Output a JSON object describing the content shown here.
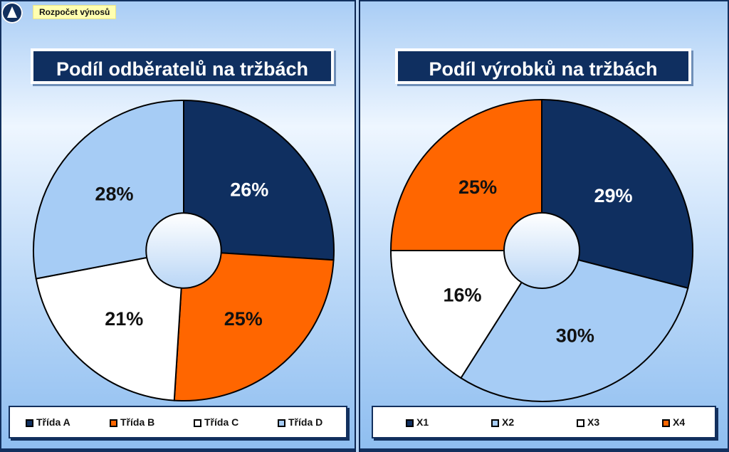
{
  "header": {
    "label": "Rozpočet výnosů"
  },
  "colors": {
    "navy": "#0f2f60",
    "orange": "#ff6600",
    "white": "#ffffff",
    "light_blue": "#a6ccf5"
  },
  "chart_data": [
    {
      "type": "pie",
      "title": "Podíl odběratelů na tržbách",
      "categories": [
        "Třída A",
        "Třída B",
        "Třída C",
        "Třída D"
      ],
      "values": [
        26,
        25,
        21,
        28
      ],
      "labels": [
        "26%",
        "25%",
        "21%",
        "28%"
      ],
      "colors": [
        "#0f2f60",
        "#ff6600",
        "#ffffff",
        "#a6ccf5"
      ],
      "label_colors": [
        "#ffffff",
        "#111111",
        "#111111",
        "#111111"
      ],
      "donut_hole": true,
      "legend_position": "bottom"
    },
    {
      "type": "pie",
      "title": "Podíl výrobků na tržbách",
      "categories": [
        "X1",
        "X2",
        "X3",
        "X4"
      ],
      "values": [
        29,
        30,
        16,
        25
      ],
      "labels": [
        "29%",
        "30%",
        "16%",
        "25%"
      ],
      "colors": [
        "#0f2f60",
        "#a6ccf5",
        "#ffffff",
        "#ff6600"
      ],
      "label_colors": [
        "#ffffff",
        "#111111",
        "#111111",
        "#111111"
      ],
      "donut_hole": true,
      "legend_position": "bottom"
    }
  ]
}
